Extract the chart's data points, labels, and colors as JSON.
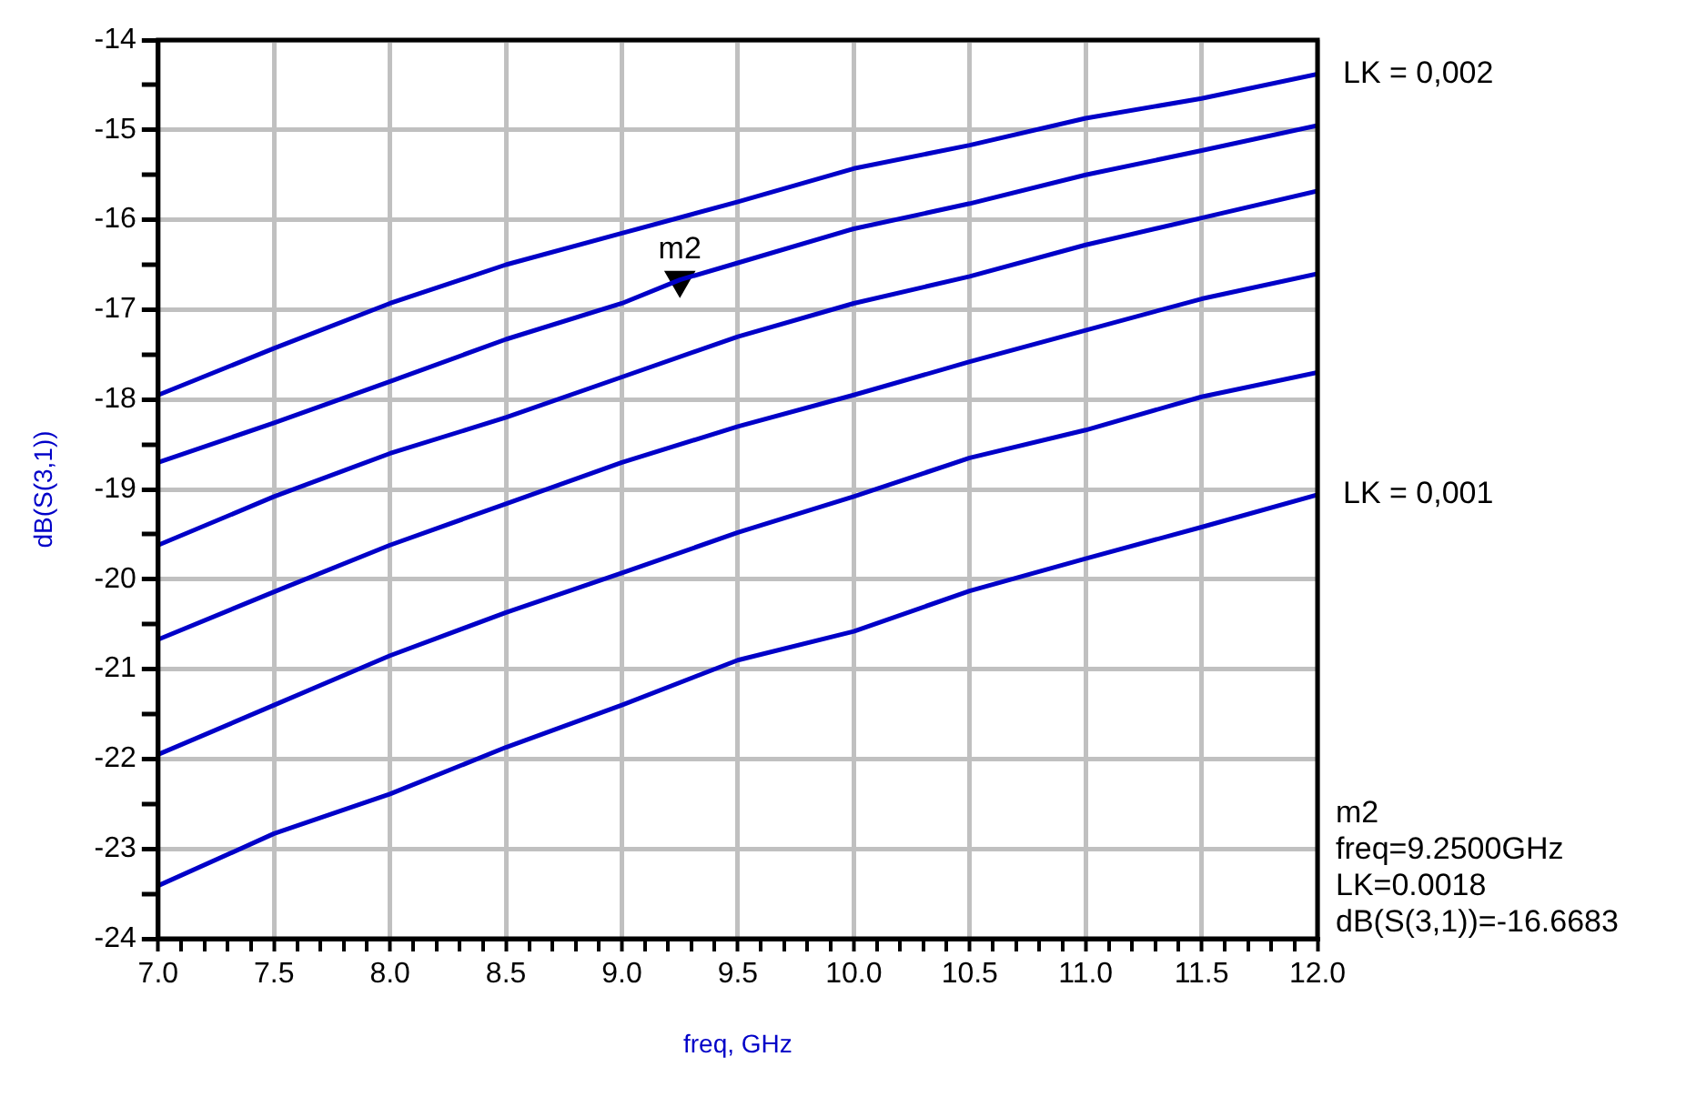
{
  "chart_data": {
    "type": "line",
    "xlabel": "freq, GHz",
    "ylabel": "dB(S(3,1))",
    "x": [
      7.0,
      7.5,
      8.0,
      8.5,
      9.0,
      9.5,
      10.0,
      10.5,
      11.0,
      11.5,
      12.0
    ],
    "series": [
      {
        "name": "LK = 0,002",
        "color": "#0000c8",
        "values": [
          -17.95,
          -17.43,
          -16.93,
          -16.5,
          -16.15,
          -15.8,
          -15.43,
          -15.17,
          -14.87,
          -14.65,
          -14.38
        ]
      },
      {
        "color": "#0000c8",
        "x": [
          7.0,
          7.5,
          8.0,
          8.5,
          9.0,
          9.25,
          9.5,
          10.0,
          10.5,
          11.0,
          11.5,
          12.0
        ],
        "values": [
          -18.7,
          -18.26,
          -17.8,
          -17.33,
          -16.93,
          -16.6683,
          -16.48,
          -16.1,
          -15.82,
          -15.5,
          -15.23,
          -14.95
        ]
      },
      {
        "color": "#0000c8",
        "values": [
          -19.62,
          -19.08,
          -18.6,
          -18.2,
          -17.75,
          -17.3,
          -16.93,
          -16.63,
          -16.28,
          -15.98,
          -15.68
        ]
      },
      {
        "color": "#0000c8",
        "values": [
          -20.67,
          -20.14,
          -19.62,
          -19.16,
          -18.7,
          -18.3,
          -17.95,
          -17.58,
          -17.23,
          -16.88,
          -16.6
        ]
      },
      {
        "color": "#0000c8",
        "values": [
          -21.95,
          -21.4,
          -20.85,
          -20.37,
          -19.93,
          -19.48,
          -19.08,
          -18.65,
          -18.34,
          -17.97,
          -17.7
        ]
      },
      {
        "name": "LK = 0,001",
        "color": "#0000c8",
        "values": [
          -23.41,
          -22.83,
          -22.39,
          -21.87,
          -21.4,
          -20.9,
          -20.58,
          -20.13,
          -19.77,
          -19.42,
          -19.06
        ]
      },
      {
        "type": "scatter",
        "marker": "triangle",
        "color": "#000000",
        "x": [
          9.25
        ],
        "values": [
          -16.6683
        ]
      }
    ],
    "marker": "none",
    "line_style": "solid",
    "grid": true,
    "legend": false,
    "xlim": [
      7,
      12
    ],
    "ylim": [
      -24,
      -14
    ],
    "xticks": [
      {
        "value": 7,
        "label": "7.0"
      },
      {
        "value": 7.1,
        "label": null
      },
      {
        "value": 7.2,
        "label": null
      },
      {
        "value": 7.3,
        "label": null
      },
      {
        "value": 7.4,
        "label": null
      },
      {
        "value": 7.5,
        "label": "7.5"
      },
      {
        "value": 7.6,
        "label": null
      },
      {
        "value": 7.7,
        "label": null
      },
      {
        "value": 7.8,
        "label": null
      },
      {
        "value": 7.9,
        "label": null
      },
      {
        "value": 8,
        "label": "8.0"
      },
      {
        "value": 8.1,
        "label": null
      },
      {
        "value": 8.2,
        "label": null
      },
      {
        "value": 8.3,
        "label": null
      },
      {
        "value": 8.4,
        "label": null
      },
      {
        "value": 8.5,
        "label": "8.5"
      },
      {
        "value": 8.6,
        "label": null
      },
      {
        "value": 8.7,
        "label": null
      },
      {
        "value": 8.8,
        "label": null
      },
      {
        "value": 8.9,
        "label": null
      },
      {
        "value": 9,
        "label": "9.0"
      },
      {
        "value": 9.1,
        "label": null
      },
      {
        "value": 9.2,
        "label": null
      },
      {
        "value": 9.3,
        "label": null
      },
      {
        "value": 9.4,
        "label": null
      },
      {
        "value": 9.5,
        "label": "9.5"
      },
      {
        "value": 9.6,
        "label": null
      },
      {
        "value": 9.7,
        "label": null
      },
      {
        "value": 9.8,
        "label": null
      },
      {
        "value": 9.9,
        "label": null
      },
      {
        "value": 10,
        "label": "10.0"
      },
      {
        "value": 10.1,
        "label": null
      },
      {
        "value": 10.2,
        "label": null
      },
      {
        "value": 10.3,
        "label": null
      },
      {
        "value": 10.4,
        "label": null
      },
      {
        "value": 10.5,
        "label": "10.5"
      },
      {
        "value": 10.6,
        "label": null
      },
      {
        "value": 10.7,
        "label": null
      },
      {
        "value": 10.8,
        "label": null
      },
      {
        "value": 10.9,
        "label": null
      },
      {
        "value": 11,
        "label": "11.0"
      },
      {
        "value": 11.1,
        "label": null
      },
      {
        "value": 11.2,
        "label": null
      },
      {
        "value": 11.3,
        "label": null
      },
      {
        "value": 11.4,
        "label": null
      },
      {
        "value": 11.5,
        "label": "11.5"
      },
      {
        "value": 11.6,
        "label": null
      },
      {
        "value": 11.7,
        "label": null
      },
      {
        "value": 11.8,
        "label": null
      },
      {
        "value": 11.9,
        "label": null
      },
      {
        "value": 12,
        "label": "12.0"
      }
    ],
    "yticks": [
      -24,
      {
        "value": -23.5,
        "label": null
      },
      -23,
      {
        "value": -22.5,
        "label": null
      },
      -22,
      {
        "value": -21.5,
        "label": null
      },
      -21,
      {
        "value": -20.5,
        "label": null
      },
      -20,
      {
        "value": -19.5,
        "label": null
      },
      -19,
      {
        "value": -18.5,
        "label": null
      },
      -18,
      {
        "value": -17.5,
        "label": null
      },
      -17,
      {
        "value": -16.5,
        "label": null
      },
      -16,
      {
        "value": -15.5,
        "label": null
      },
      -15,
      {
        "value": -14.5,
        "label": null
      },
      -14
    ],
    "annotations": [
      {
        "text": "m2",
        "x": 9.25,
        "y": -16.6683
      },
      "m2\nfreq=9.2500GHz\nLK=0.0018\ndB(S(3,1))=-16.6683"
    ]
  }
}
